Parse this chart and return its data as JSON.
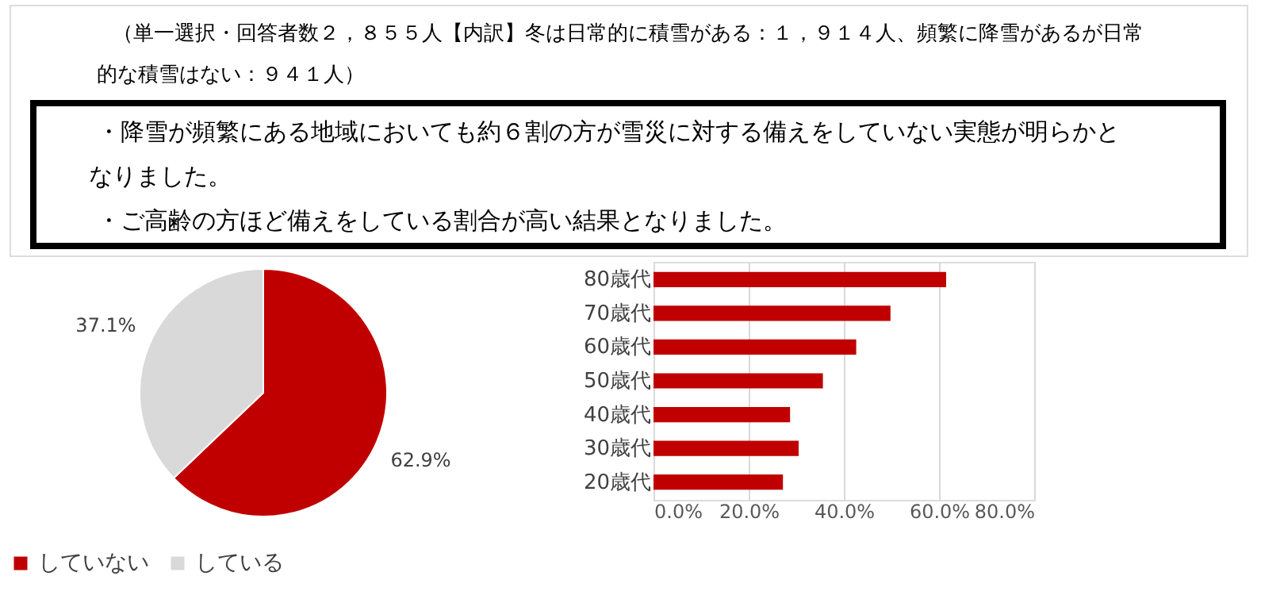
{
  "chart_data": [
    {
      "type": "pie",
      "title": "（単一選択・回答者数２，８５５人【内訳】冬は日常的に積雪がある：１，９１４人、頻繁に降雪があるが日常的な積雪はない：９４１人）",
      "annotations": [
        "・降雪が頻繁にある地域においても約６割の方が雪災に対する備えをしていない実態が明らかとなりました。",
        "・ご高齢の方ほど備えをしている割合が高い結果となりました。"
      ],
      "categories": [
        "していない",
        "している"
      ],
      "values": [
        62.9,
        37.1
      ],
      "colors": [
        "#c00000",
        "#d9d9d9"
      ],
      "value_labels": [
        "62.9%",
        "37.1%"
      ],
      "legend": "bottom"
    },
    {
      "type": "bar",
      "orientation": "horizontal",
      "categories": [
        "80歳代",
        "70歳代",
        "60歳代",
        "50歳代",
        "40歳代",
        "30歳代",
        "20歳代"
      ],
      "values": [
        61.5,
        49.8,
        42.6,
        35.6,
        28.7,
        30.5,
        27.2
      ],
      "color": "#c00000",
      "xlim": [
        0,
        80
      ],
      "xticks": [
        {
          "value": 0,
          "label": "0.0%"
        },
        {
          "value": 20,
          "label": "20.0%"
        },
        {
          "value": 40,
          "label": "40.0%"
        },
        {
          "value": 60,
          "label": "60.0%"
        },
        {
          "value": 80,
          "label": "80.0%"
        }
      ],
      "grid": "x"
    }
  ]
}
